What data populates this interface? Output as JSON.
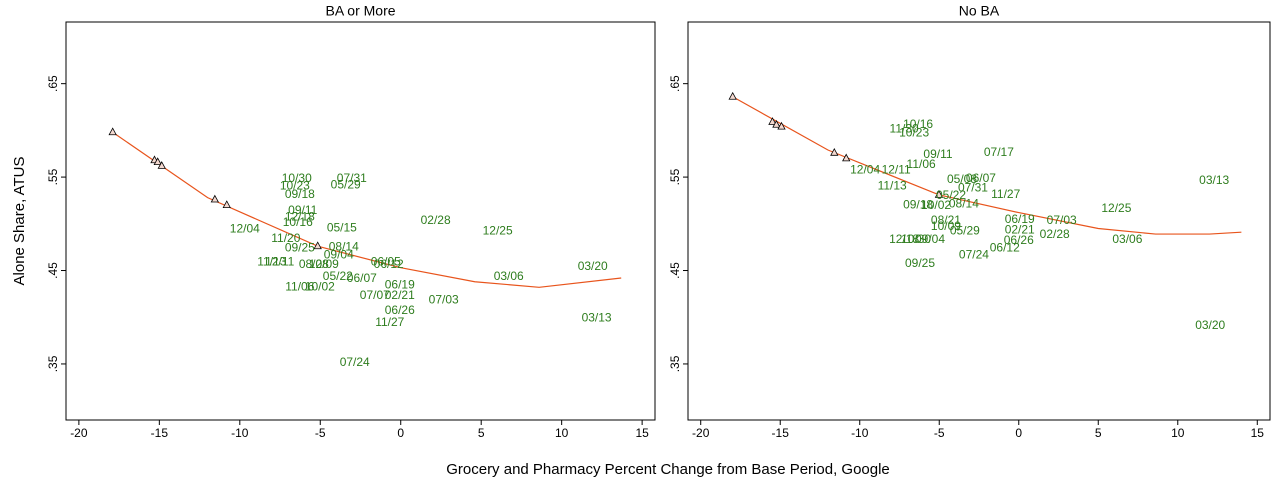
{
  "chart_data": [
    {
      "type": "scatter",
      "title": "BA or More",
      "ylabel": "Alone Share, ATUS",
      "xlabel": "Grocery and Pharmacy Percent Change from Base Period, Google",
      "xlim": [
        -20.8,
        15.8
      ],
      "ylim": [
        0.29,
        0.716
      ],
      "xticks": [
        -20,
        -15,
        -10,
        -5,
        0,
        5,
        10,
        15
      ],
      "yticks": [
        {
          "value": 0.35,
          "label": ".35"
        },
        {
          "value": 0.45,
          "label": ".45"
        },
        {
          "value": 0.55,
          "label": ".55"
        },
        {
          "value": 0.65,
          "label": ".65"
        }
      ],
      "label_color": "#2e7d1e",
      "points": {
        "labels": [
          "10/30",
          "07/31",
          "10/23",
          "05/29",
          "09/18",
          "09/11",
          "12/18",
          "10/16",
          "02/28",
          "05/15",
          "12/04",
          "12/25",
          "11/20",
          "09/25",
          "08/14",
          "09/04",
          "11/13",
          "12/11",
          "08/28",
          "10/09",
          "06/05",
          "06/12",
          "05/22",
          "06/07",
          "11/06",
          "10/02",
          "06/19",
          "07/07",
          "02/21",
          "07/03",
          "06/26",
          "11/27",
          "03/13",
          "07/24",
          "03/06",
          "03/20"
        ],
        "x": [
          -6.46,
          -3.04,
          -6.58,
          -3.42,
          -6.27,
          -6.09,
          -6.27,
          -6.4,
          2.17,
          -3.66,
          -9.69,
          6.02,
          -7.14,
          -6.27,
          -3.54,
          -3.85,
          -8.01,
          -7.52,
          -5.4,
          -4.78,
          -0.93,
          -0.75,
          -3.91,
          -2.42,
          -6.27,
          -5.03,
          -0.06,
          -1.61,
          -0.06,
          2.67,
          -0.06,
          -0.68,
          12.17,
          -2.86,
          6.71,
          11.93
        ],
        "values": [
          0.548,
          0.548,
          0.54,
          0.541,
          0.531,
          0.514,
          0.507,
          0.501,
          0.503,
          0.495,
          0.494,
          0.492,
          0.484,
          0.474,
          0.475,
          0.466,
          0.459,
          0.459,
          0.456,
          0.456,
          0.459,
          0.456,
          0.443,
          0.441,
          0.432,
          0.432,
          0.434,
          0.423,
          0.423,
          0.418,
          0.407,
          0.394,
          0.399,
          0.351,
          0.443,
          0.454
        ]
      },
      "triangles": {
        "x": [
          -17.9,
          -15.3,
          -15.1,
          -14.85,
          -11.55,
          -10.81,
          -5.16
        ],
        "values": [
          0.598,
          0.568,
          0.566,
          0.562,
          0.526,
          0.52,
          0.476
        ]
      },
      "fit": {
        "color": "#e8541c",
        "x": [
          -17.9,
          -12,
          -5.16,
          0,
          4.6,
          8.6,
          13.7
        ],
        "values": [
          0.598,
          0.528,
          0.476,
          0.453,
          0.438,
          0.432,
          0.442
        ]
      }
    },
    {
      "type": "scatter",
      "title": "No BA",
      "xlim": [
        -20.8,
        15.8
      ],
      "ylim": [
        0.29,
        0.716
      ],
      "xticks": [
        -20,
        -15,
        -10,
        -5,
        0,
        5,
        10,
        15
      ],
      "yticks": [
        {
          "value": 0.35,
          "label": ".35"
        },
        {
          "value": 0.45,
          "label": ".45"
        },
        {
          "value": 0.55,
          "label": ".55"
        },
        {
          "value": 0.65,
          "label": ".65"
        }
      ],
      "label_color": "#2e7d1e",
      "points": {
        "labels": [
          "10/16",
          "11/30",
          "10/23",
          "09/11",
          "07/17",
          "11/06",
          "12/04",
          "12/11",
          "11/13",
          "05/08",
          "06/07",
          "07/31",
          "05/22",
          "11/27",
          "09/18",
          "10/02",
          "08/14",
          "08/21",
          "10/09",
          "06/19",
          "07/03",
          "02/21",
          "02/28",
          "12/25",
          "09/04",
          "05/29",
          "12/18",
          "10/30",
          "06/26",
          "06/12",
          "07/24",
          "09/25",
          "03/06",
          "03/13",
          "03/20"
        ],
        "x": [
          -6.33,
          -7.21,
          -6.58,
          -5.08,
          -1.25,
          -6.14,
          -9.66,
          -7.71,
          -7.96,
          -3.57,
          -2.38,
          -2.88,
          -4.26,
          -0.82,
          -6.33,
          -5.2,
          -3.45,
          -4.58,
          -4.58,
          0.06,
          2.7,
          0.06,
          2.26,
          6.14,
          -5.58,
          -3.39,
          -7.21,
          -6.46,
          0,
          -0.88,
          -2.82,
          -6.21,
          6.83,
          12.29,
          12.04
        ],
        "values": [
          0.606,
          0.601,
          0.597,
          0.574,
          0.576,
          0.563,
          0.557,
          0.557,
          0.54,
          0.547,
          0.548,
          0.538,
          0.53,
          0.531,
          0.52,
          0.519,
          0.521,
          0.503,
          0.497,
          0.504,
          0.503,
          0.493,
          0.488,
          0.516,
          0.483,
          0.492,
          0.483,
          0.483,
          0.482,
          0.474,
          0.466,
          0.457,
          0.483,
          0.546,
          0.391
        ]
      },
      "triangles": {
        "x": [
          -17.99,
          -15.49,
          -15.24,
          -14.92,
          -11.6,
          -10.85,
          -5.02
        ],
        "values": [
          0.636,
          0.609,
          0.606,
          0.604,
          0.576,
          0.57,
          0.531
        ]
      },
      "fit": {
        "color": "#e8541c",
        "x": [
          -17.99,
          -12,
          -5.02,
          0,
          5,
          8.6,
          12,
          14
        ],
        "values": [
          0.636,
          0.579,
          0.531,
          0.512,
          0.495,
          0.489,
          0.489,
          0.491
        ]
      }
    }
  ]
}
